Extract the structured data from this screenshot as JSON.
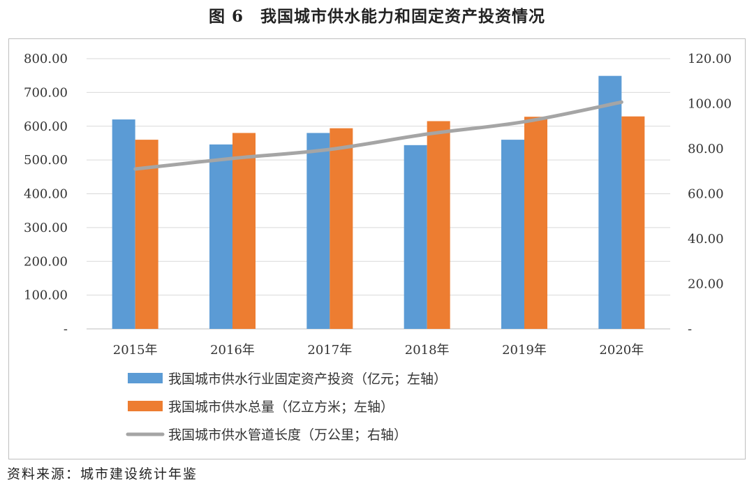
{
  "title": "图 6　我国城市供水能力和固定资产投资情况",
  "source": "资料来源：城市建设统计年鉴",
  "colors": {
    "investment": "#5B9BD5",
    "supply": "#ED7D31",
    "pipeline": "#A5A5A5",
    "grid": "#D9D9D9",
    "axis": "#BFBFBF"
  },
  "chart_data": {
    "type": "bar",
    "categories": [
      "2015年",
      "2016年",
      "2017年",
      "2018年",
      "2019年",
      "2020年"
    ],
    "y_left": {
      "ylim": [
        0,
        800
      ],
      "ticks": [
        "-",
        "100.00",
        "200.00",
        "300.00",
        "400.00",
        "500.00",
        "600.00",
        "700.00",
        "800.00"
      ]
    },
    "y_right": {
      "ylim": [
        0,
        120
      ],
      "ticks": [
        "-",
        "20.00",
        "40.00",
        "60.00",
        "80.00",
        "100.00",
        "120.00"
      ]
    },
    "series": [
      {
        "name": "我国城市供水行业固定资产投资（亿元；左轴）",
        "type": "bar",
        "axis": "left",
        "values": [
          620,
          546,
          580,
          544,
          560,
          749
        ]
      },
      {
        "name": "我国城市供水总量（亿立方米；左轴）",
        "type": "bar",
        "axis": "left",
        "values": [
          560,
          580,
          594,
          615,
          628,
          629
        ]
      },
      {
        "name": "我国城市供水管道长度（万公里；右轴）",
        "type": "line",
        "axis": "right",
        "values": [
          71,
          75.7,
          79.7,
          86.5,
          92.0,
          100.7
        ]
      }
    ],
    "grid": true,
    "legend_position": "bottom"
  }
}
